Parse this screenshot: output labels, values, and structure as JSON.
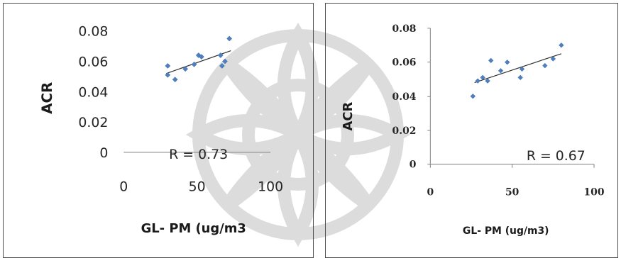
{
  "chart_data": [
    {
      "type": "scatter",
      "xlabel": "GL- PM (ug/m3",
      "ylabel": "ACR",
      "xlim": [
        0,
        100
      ],
      "ylim": [
        0,
        0.08
      ],
      "x_ticks": [
        "0",
        "50",
        "100"
      ],
      "y_ticks": [
        "0",
        "0.02",
        "0.04",
        "0.06",
        "0.08"
      ],
      "annotation": "R = 0.73",
      "trendline": true,
      "grid": false,
      "color": "#4f7fbf",
      "points": [
        {
          "x": 30,
          "y": 0.051
        },
        {
          "x": 30,
          "y": 0.057
        },
        {
          "x": 35,
          "y": 0.048
        },
        {
          "x": 42,
          "y": 0.055
        },
        {
          "x": 48,
          "y": 0.058
        },
        {
          "x": 51,
          "y": 0.064
        },
        {
          "x": 53,
          "y": 0.063
        },
        {
          "x": 66,
          "y": 0.064
        },
        {
          "x": 67,
          "y": 0.057
        },
        {
          "x": 69,
          "y": 0.06
        },
        {
          "x": 72,
          "y": 0.075
        }
      ],
      "trend": {
        "x1": 29,
        "y1": 0.052,
        "x2": 73,
        "y2": 0.067
      }
    },
    {
      "type": "scatter",
      "xlabel": "GL- PM (ug/m3)",
      "ylabel": "ACR",
      "xlim": [
        0,
        100
      ],
      "ylim": [
        0,
        0.08
      ],
      "x_ticks": [
        "0",
        "50",
        "100"
      ],
      "y_ticks": [
        "0",
        "0.02",
        "0.04",
        "0.06",
        "0.08"
      ],
      "annotation": "R = 0.67",
      "trendline": true,
      "grid": false,
      "color": "#4f7fbf",
      "points": [
        {
          "x": 26,
          "y": 0.04
        },
        {
          "x": 29,
          "y": 0.049
        },
        {
          "x": 32,
          "y": 0.051
        },
        {
          "x": 35,
          "y": 0.049
        },
        {
          "x": 37,
          "y": 0.061
        },
        {
          "x": 43,
          "y": 0.055
        },
        {
          "x": 47,
          "y": 0.06
        },
        {
          "x": 55,
          "y": 0.051
        },
        {
          "x": 56,
          "y": 0.056
        },
        {
          "x": 70,
          "y": 0.058
        },
        {
          "x": 75,
          "y": 0.062
        },
        {
          "x": 80,
          "y": 0.07
        }
      ],
      "trend": {
        "x1": 27,
        "y1": 0.048,
        "x2": 80,
        "y2": 0.065
      }
    }
  ]
}
